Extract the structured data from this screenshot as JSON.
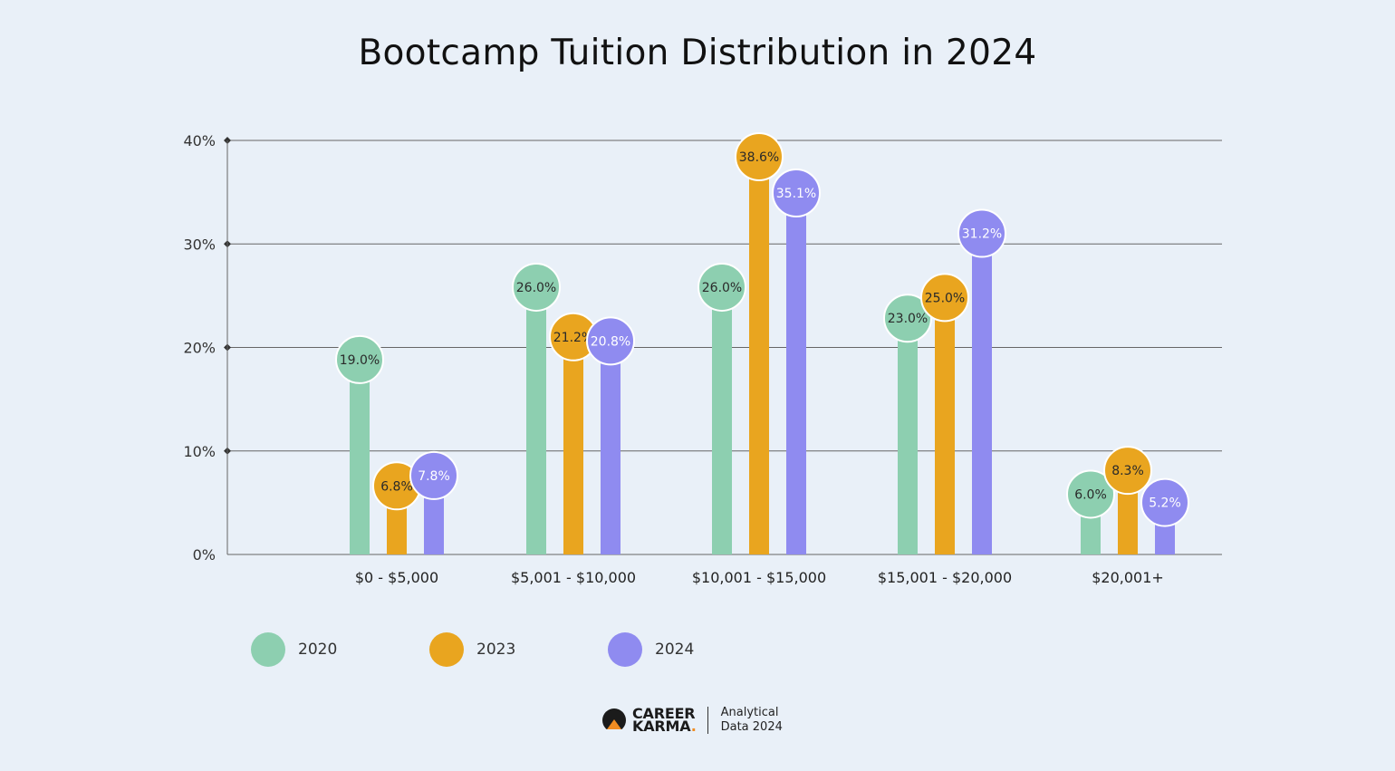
{
  "title": "Bootcamp Tuition Distribution in 2024",
  "colors": {
    "2020": "#8dcfb0",
    "2023": "#e9a51f",
    "2024": "#8f8bf0",
    "background": "#e9f0f8"
  },
  "chart_data": {
    "type": "bar",
    "title": "Bootcamp Tuition Distribution in 2024",
    "xlabel": "",
    "ylabel": "",
    "ylim": [
      0,
      40
    ],
    "yticks": [
      "0%",
      "10%",
      "20%",
      "30%",
      "40%"
    ],
    "grid": true,
    "legend_position": "bottom-left",
    "categories": [
      "$0 - $5,000",
      "$5,001 - $10,000",
      "$10,001 - $15,000",
      "$15,001 - $20,000",
      "$20,001+"
    ],
    "series": [
      {
        "name": "2020",
        "values": [
          19.0,
          26.0,
          26.0,
          23.0,
          6.0
        ],
        "labels": [
          "19.0%",
          "26.0%",
          "26.0%",
          "23.0%",
          "6.0%"
        ]
      },
      {
        "name": "2023",
        "values": [
          6.8,
          21.2,
          38.6,
          25.0,
          8.3
        ],
        "labels": [
          "6.8%",
          "21.2%",
          "38.6%",
          "25.0%",
          "8.3%"
        ]
      },
      {
        "name": "2024",
        "values": [
          7.8,
          20.8,
          35.1,
          31.2,
          5.2
        ],
        "labels": [
          "7.8%",
          "20.8%",
          "35.1%",
          "31.2%",
          "5.2%"
        ]
      }
    ]
  },
  "legend": [
    {
      "label": "2020",
      "color": "#8dcfb0"
    },
    {
      "label": "2023",
      "color": "#e9a51f"
    },
    {
      "label": "2024",
      "color": "#8f8bf0"
    }
  ],
  "footer": {
    "brand_line1": "CAREER",
    "brand_line2": "KARMA",
    "brand_dot": ".",
    "note_line1": "Analytical",
    "note_line2": "Data 2024"
  }
}
